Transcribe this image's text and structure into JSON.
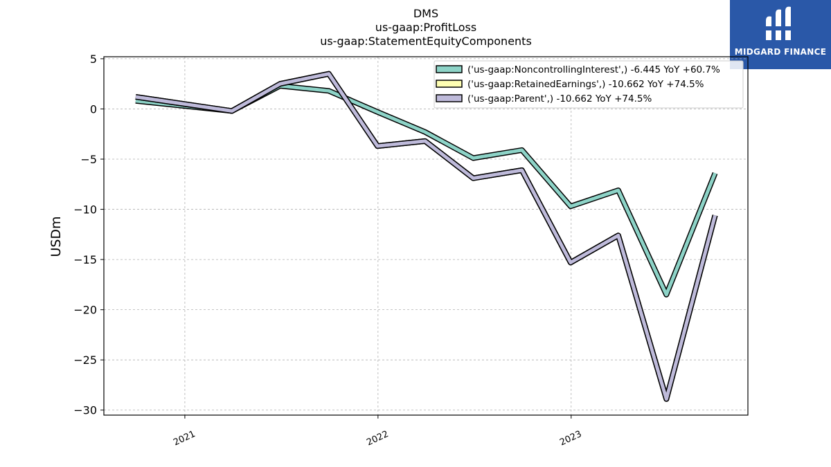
{
  "titles": [
    "DMS",
    "us-gaap:ProfitLoss",
    "us-gaap:StatementEquityComponents"
  ],
  "logo": {
    "text": "MIDGARD FINANCE",
    "color": "#2a58a8"
  },
  "chart_data": {
    "type": "line",
    "title": "DMS\nus-gaap:ProfitLoss\nus-gaap:StatementEquityComponents",
    "xlabel": "",
    "ylabel": "USDm",
    "x": [
      "2020-09-30",
      "2021-03-31",
      "2021-06-30",
      "2021-09-30",
      "2021-12-31",
      "2022-03-31",
      "2022-06-30",
      "2022-09-30",
      "2022-12-31",
      "2023-03-31",
      "2023-06-30",
      "2023-09-30"
    ],
    "x_ticks": [
      "2021",
      "2022",
      "2023"
    ],
    "x_tick_dates": [
      "2021-01-01",
      "2022-01-01",
      "2023-01-01"
    ],
    "xlim": [
      "2020-08-01",
      "2023-12-01"
    ],
    "ylim": [
      -30.5,
      5.2
    ],
    "y_ticks": [
      5,
      0,
      -5,
      -10,
      -15,
      -20,
      -25,
      -30
    ],
    "y_tick_labels": [
      "5",
      "0",
      "−5",
      "−10",
      "−15",
      "−20",
      "−25",
      "−30"
    ],
    "grid": true,
    "legend_position": "top-right",
    "series": [
      {
        "name": "('us-gaap:NoncontrollingInterest',) -6.445 YoY +60.7%",
        "color": "#8dd3c7",
        "values": [
          0.8,
          -0.2,
          2.3,
          1.8,
          -0.3,
          -2.3,
          -4.9,
          -4.1,
          -9.7,
          -8.1,
          -18.5,
          -6.4
        ]
      },
      {
        "name": "('us-gaap:RetainedEarnings',) -10.662 YoY +74.5%",
        "color": "#ffffb3",
        "values": [
          1.2,
          -0.2,
          2.5,
          3.5,
          -3.7,
          -3.2,
          -6.9,
          -6.1,
          -15.3,
          -12.6,
          -28.9,
          -10.6
        ]
      },
      {
        "name": "('us-gaap:Parent',) -10.662 YoY +74.5%",
        "color": "#bebada",
        "values": [
          1.2,
          -0.2,
          2.5,
          3.5,
          -3.7,
          -3.2,
          -6.9,
          -6.1,
          -15.3,
          -12.6,
          -28.9,
          -10.6
        ]
      }
    ]
  }
}
